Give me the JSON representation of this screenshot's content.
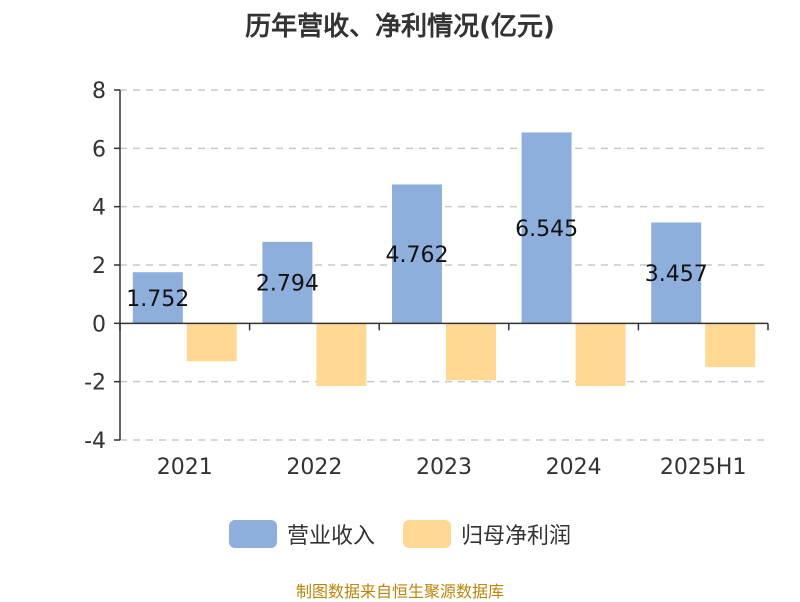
{
  "title": "历年营收、净利情况(亿元)",
  "source": "制图数据来自恒生聚源数据库",
  "colors": {
    "revenue": "#8eaedc",
    "profit": "#ffd894",
    "axis": "#333333",
    "grid": "#c8c8c8"
  },
  "chart_data": {
    "type": "bar",
    "categories": [
      "2021",
      "2022",
      "2023",
      "2024",
      "2025H1"
    ],
    "series": [
      {
        "name": "营业收入",
        "values": [
          1.752,
          2.794,
          4.762,
          6.545,
          3.457
        ],
        "labels": [
          "1.752",
          "2.794",
          "4.762",
          "6.545",
          "3.457"
        ]
      },
      {
        "name": "归母净利润",
        "values": [
          -1.3,
          -2.15,
          -1.95,
          -2.15,
          -1.5
        ]
      }
    ],
    "ylim": [
      -4,
      8
    ],
    "yticks": [
      8,
      6,
      4,
      2,
      0,
      -2,
      -4
    ],
    "grid": true,
    "legend": "bottom"
  }
}
